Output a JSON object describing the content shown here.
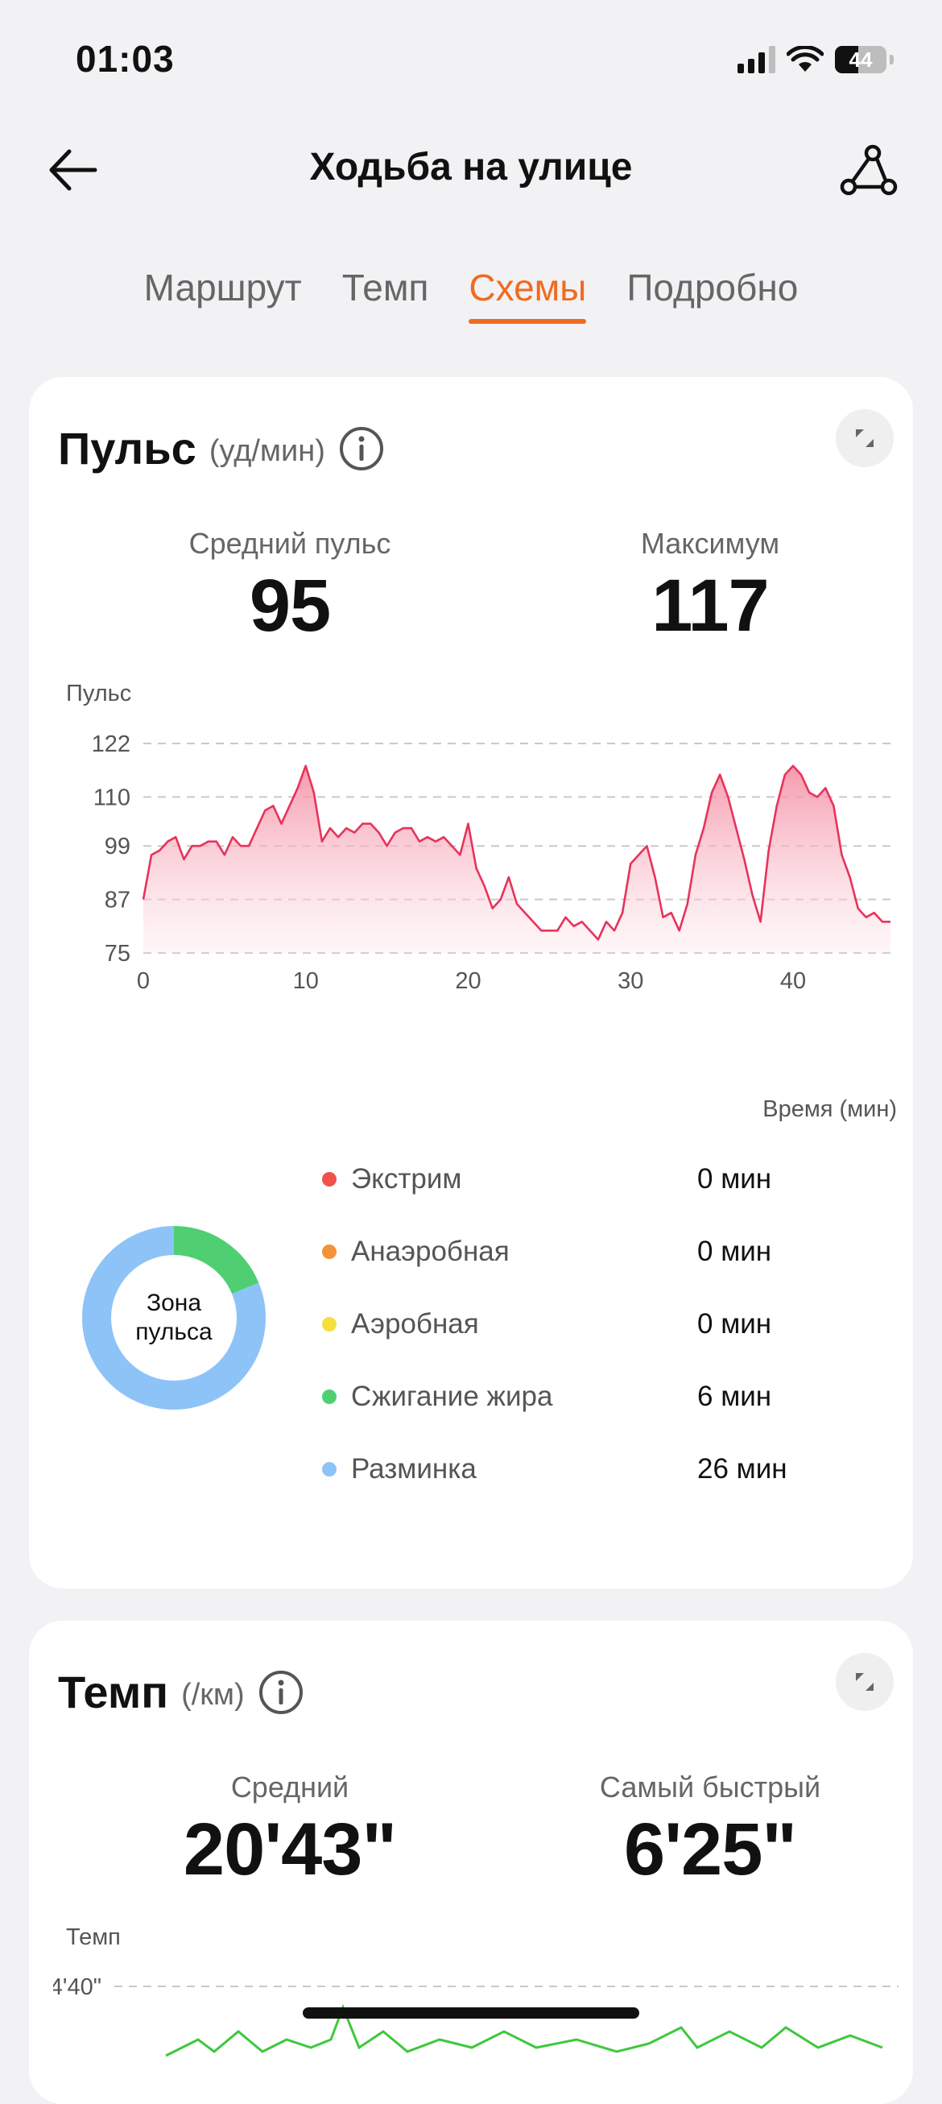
{
  "status_bar": {
    "time": "01:03",
    "battery": "44"
  },
  "header": {
    "title": "Ходьба на улице"
  },
  "tabs": [
    {
      "label": "Маршрут",
      "active": false
    },
    {
      "label": "Темп",
      "active": false
    },
    {
      "label": "Схемы",
      "active": true
    },
    {
      "label": "Подробно",
      "active": false
    }
  ],
  "pulse_card": {
    "title": "Пульс",
    "unit": "(уд/мин)",
    "avg_label": "Средний пульс",
    "avg_value": "95",
    "max_label": "Максимум",
    "max_value": "117"
  },
  "chart_data": {
    "type": "area",
    "ylabel": "Пульс",
    "xlabel": "Время (мин)",
    "yticks": [
      122,
      110,
      99,
      87,
      75
    ],
    "xticks": [
      0,
      10,
      20,
      30,
      40
    ],
    "ylim": [
      75,
      122
    ],
    "xlim": [
      0,
      46
    ],
    "grid": true,
    "color": "#e8335a",
    "x": [
      0,
      0.5,
      1,
      1.5,
      2,
      2.5,
      3,
      3.5,
      4,
      4.5,
      5,
      5.5,
      6,
      6.5,
      7,
      7.5,
      8,
      8.5,
      9,
      9.5,
      10,
      10.5,
      11,
      11.5,
      12,
      12.5,
      13,
      13.5,
      14,
      14.5,
      15,
      15.5,
      16,
      16.5,
      17,
      17.5,
      18,
      18.5,
      19,
      19.5,
      20,
      20.5,
      21,
      21.5,
      22,
      22.5,
      23,
      23.5,
      24,
      24.5,
      25,
      25.5,
      26,
      26.5,
      27,
      27.5,
      28,
      28.5,
      29,
      29.5,
      30,
      30.5,
      31,
      31.5,
      32,
      32.5,
      33,
      33.5,
      34,
      34.5,
      35,
      35.5,
      36,
      36.5,
      37,
      37.5,
      38,
      38.5,
      39,
      39.5,
      40,
      40.5,
      41,
      41.5,
      42,
      42.5,
      43,
      43.5,
      44,
      44.5,
      45,
      45.5,
      46
    ],
    "y": [
      87,
      97,
      98,
      100,
      101,
      96,
      99,
      99,
      100,
      100,
      97,
      101,
      99,
      99,
      103,
      107,
      108,
      104,
      108,
      112,
      117,
      111,
      100,
      103,
      101,
      103,
      102,
      104,
      104,
      102,
      99,
      102,
      103,
      103,
      100,
      101,
      100,
      101,
      99,
      97,
      104,
      94,
      90,
      85,
      87,
      92,
      86,
      84,
      82,
      80,
      80,
      80,
      83,
      81,
      82,
      80,
      78,
      82,
      80,
      84,
      95,
      97,
      99,
      92,
      83,
      84,
      80,
      86,
      97,
      103,
      111,
      115,
      110,
      103,
      96,
      88,
      82,
      98,
      108,
      115,
      117,
      115,
      111,
      110,
      112,
      108,
      97,
      92,
      85,
      83,
      84,
      82,
      82
    ]
  },
  "zones_card": {
    "donut_label_line1": "Зона",
    "donut_label_line2": "пульса",
    "zones": [
      {
        "name": "Экстрим",
        "value": "0 мин",
        "color": "#f0524a",
        "minutes": 0
      },
      {
        "name": "Анаэробная",
        "value": "0 мин",
        "color": "#f3923a",
        "minutes": 0
      },
      {
        "name": "Аэробная",
        "value": "0 мин",
        "color": "#f5df3b",
        "minutes": 0
      },
      {
        "name": "Сжигание жира",
        "value": "6 мин",
        "color": "#4fcf72",
        "minutes": 6
      },
      {
        "name": "Разминка",
        "value": "26 мин",
        "color": "#8ec3f8",
        "minutes": 26
      }
    ]
  },
  "pace_card": {
    "title": "Темп",
    "unit": "(/км)",
    "avg_label": "Средний",
    "avg_value": "20'43\"",
    "fast_label": "Самый быстрый",
    "fast_value": "6'25\"",
    "chart_ylabel": "Темп",
    "chart_first_tick": "4'40\""
  }
}
